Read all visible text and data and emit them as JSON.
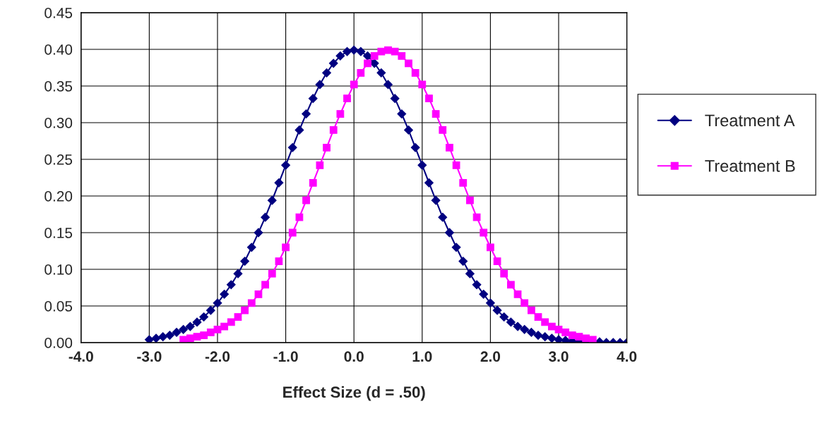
{
  "chart_data": {
    "type": "line",
    "xlabel": "Effect Size (d = .50)",
    "series": [
      {
        "name": "Treatment A",
        "color": "#000080",
        "marker": "diamond",
        "x": [
          -3.0,
          -2.9,
          -2.8,
          -2.7,
          -2.6,
          -2.5,
          -2.4,
          -2.3,
          -2.2,
          -2.1,
          -2.0,
          -1.9,
          -1.8,
          -1.7,
          -1.6,
          -1.5,
          -1.4,
          -1.3,
          -1.2,
          -1.1,
          -1.0,
          -0.9,
          -0.8,
          -0.7,
          -0.6,
          -0.5,
          -0.4,
          -0.3,
          -0.2,
          -0.1,
          0.0,
          0.1,
          0.2,
          0.3,
          0.4,
          0.5,
          0.6,
          0.7,
          0.8,
          0.9,
          1.0,
          1.1,
          1.2,
          1.3,
          1.4,
          1.5,
          1.6,
          1.7,
          1.8,
          1.9,
          2.0,
          2.1,
          2.2,
          2.3,
          2.4,
          2.5,
          2.6,
          2.7,
          2.8,
          2.9,
          3.0,
          3.1,
          3.2,
          3.3,
          3.4,
          3.5,
          3.6,
          3.7,
          3.8,
          3.9,
          4.0
        ],
        "values": [
          0.004,
          0.006,
          0.008,
          0.01,
          0.014,
          0.018,
          0.022,
          0.028,
          0.035,
          0.044,
          0.054,
          0.066,
          0.079,
          0.094,
          0.111,
          0.13,
          0.15,
          0.171,
          0.194,
          0.218,
          0.242,
          0.266,
          0.29,
          0.312,
          0.333,
          0.352,
          0.368,
          0.381,
          0.391,
          0.397,
          0.399,
          0.397,
          0.391,
          0.381,
          0.368,
          0.352,
          0.333,
          0.312,
          0.29,
          0.266,
          0.242,
          0.218,
          0.194,
          0.171,
          0.15,
          0.13,
          0.111,
          0.094,
          0.079,
          0.066,
          0.054,
          0.044,
          0.035,
          0.028,
          0.022,
          0.018,
          0.014,
          0.01,
          0.008,
          0.006,
          0.004,
          0.003,
          0.002,
          0.002,
          0.001,
          0.001,
          0.001,
          0.0,
          0.0,
          0.0,
          0.0
        ]
      },
      {
        "name": "Treatment B",
        "color": "#ff00ff",
        "marker": "square",
        "x": [
          -2.5,
          -2.4,
          -2.3,
          -2.2,
          -2.1,
          -2.0,
          -1.9,
          -1.8,
          -1.7,
          -1.6,
          -1.5,
          -1.4,
          -1.3,
          -1.2,
          -1.1,
          -1.0,
          -0.9,
          -0.8,
          -0.7,
          -0.6,
          -0.5,
          -0.4,
          -0.3,
          -0.2,
          -0.1,
          0.0,
          0.1,
          0.2,
          0.3,
          0.4,
          0.5,
          0.6,
          0.7,
          0.8,
          0.9,
          1.0,
          1.1,
          1.2,
          1.3,
          1.4,
          1.5,
          1.6,
          1.7,
          1.8,
          1.9,
          2.0,
          2.1,
          2.2,
          2.3,
          2.4,
          2.5,
          2.6,
          2.7,
          2.8,
          2.9,
          3.0,
          3.1,
          3.2,
          3.3,
          3.4,
          3.5
        ],
        "values": [
          0.004,
          0.006,
          0.008,
          0.01,
          0.014,
          0.018,
          0.022,
          0.028,
          0.035,
          0.044,
          0.054,
          0.066,
          0.079,
          0.094,
          0.111,
          0.13,
          0.15,
          0.171,
          0.194,
          0.218,
          0.242,
          0.266,
          0.29,
          0.312,
          0.333,
          0.352,
          0.368,
          0.381,
          0.391,
          0.397,
          0.399,
          0.397,
          0.391,
          0.381,
          0.368,
          0.352,
          0.333,
          0.312,
          0.29,
          0.266,
          0.242,
          0.218,
          0.194,
          0.171,
          0.15,
          0.13,
          0.111,
          0.094,
          0.079,
          0.066,
          0.054,
          0.044,
          0.035,
          0.028,
          0.022,
          0.018,
          0.014,
          0.01,
          0.008,
          0.006,
          0.004
        ]
      }
    ],
    "xlim": [
      -4,
      4
    ],
    "xticks": [
      {
        "value": -4,
        "label": "-4.0"
      },
      {
        "value": -3,
        "label": "-3.0"
      },
      {
        "value": -2,
        "label": "-2.0"
      },
      {
        "value": -1,
        "label": "-1.0"
      },
      {
        "value": 0,
        "label": "0.0"
      },
      {
        "value": 1,
        "label": "1.0"
      },
      {
        "value": 2,
        "label": "2.0"
      },
      {
        "value": 3,
        "label": "3.0"
      },
      {
        "value": 4,
        "label": "4.0"
      }
    ],
    "ylim": [
      0,
      0.45
    ],
    "yticks": [
      {
        "value": 0,
        "label": "0.00"
      },
      {
        "value": 0.05,
        "label": "0.05"
      },
      {
        "value": 0.1,
        "label": "0.10"
      },
      {
        "value": 0.15,
        "label": "0.15"
      },
      {
        "value": 0.2,
        "label": "0.20"
      },
      {
        "value": 0.25,
        "label": "0.25"
      },
      {
        "value": 0.3,
        "label": "0.30"
      },
      {
        "value": 0.35,
        "label": "0.35"
      },
      {
        "value": 0.4,
        "label": "0.40"
      },
      {
        "value": 0.45,
        "label": "0.45"
      }
    ],
    "grid": true,
    "legend": "right",
    "line_style": "solid"
  }
}
